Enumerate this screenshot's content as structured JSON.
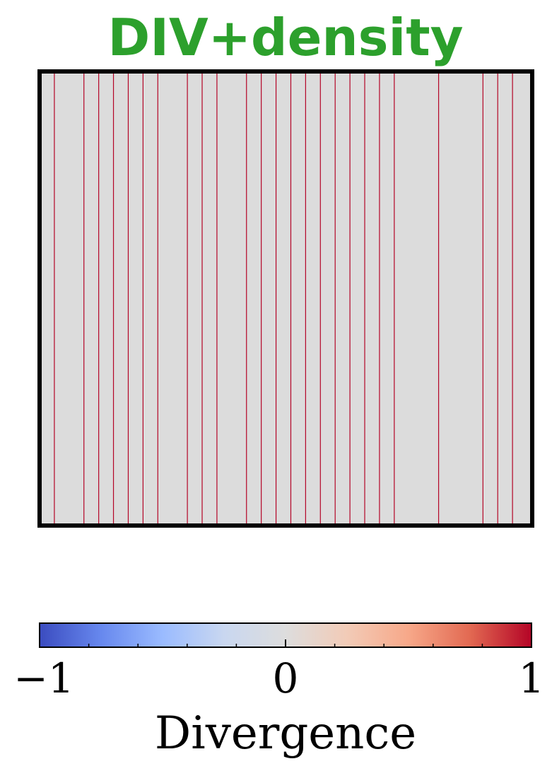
{
  "chart_data": {
    "type": "heatmap",
    "title": "DIV+density",
    "title_color": "#2ca02c",
    "background_value": 0,
    "background_color": "#dcdcdc",
    "line_color": "#b40426",
    "line_value": 1,
    "line_positions": [
      3,
      9,
      12,
      15,
      18,
      21,
      24,
      30,
      33,
      36,
      42,
      45,
      48,
      51,
      54,
      57,
      60,
      63,
      66,
      69,
      72,
      81,
      90,
      93,
      96
    ],
    "x_range": [
      0,
      100
    ],
    "axes_ticks": false,
    "colorbar": {
      "label": "Divergence",
      "min": -1,
      "max": 1,
      "tick_labels": [
        "−1",
        "0",
        "1"
      ],
      "tick_values": [
        -1,
        0,
        1
      ],
      "minor_ticks": [
        -0.8,
        -0.6,
        -0.4,
        -0.2,
        0.2,
        0.4,
        0.6,
        0.8
      ],
      "colormap": "coolwarm",
      "colormap_stops": [
        "#3b4cc0",
        "#6788ee",
        "#9abbff",
        "#c9d7f0",
        "#dddddd",
        "#f2cbb7",
        "#f7a889",
        "#e26952",
        "#b40426"
      ]
    }
  }
}
